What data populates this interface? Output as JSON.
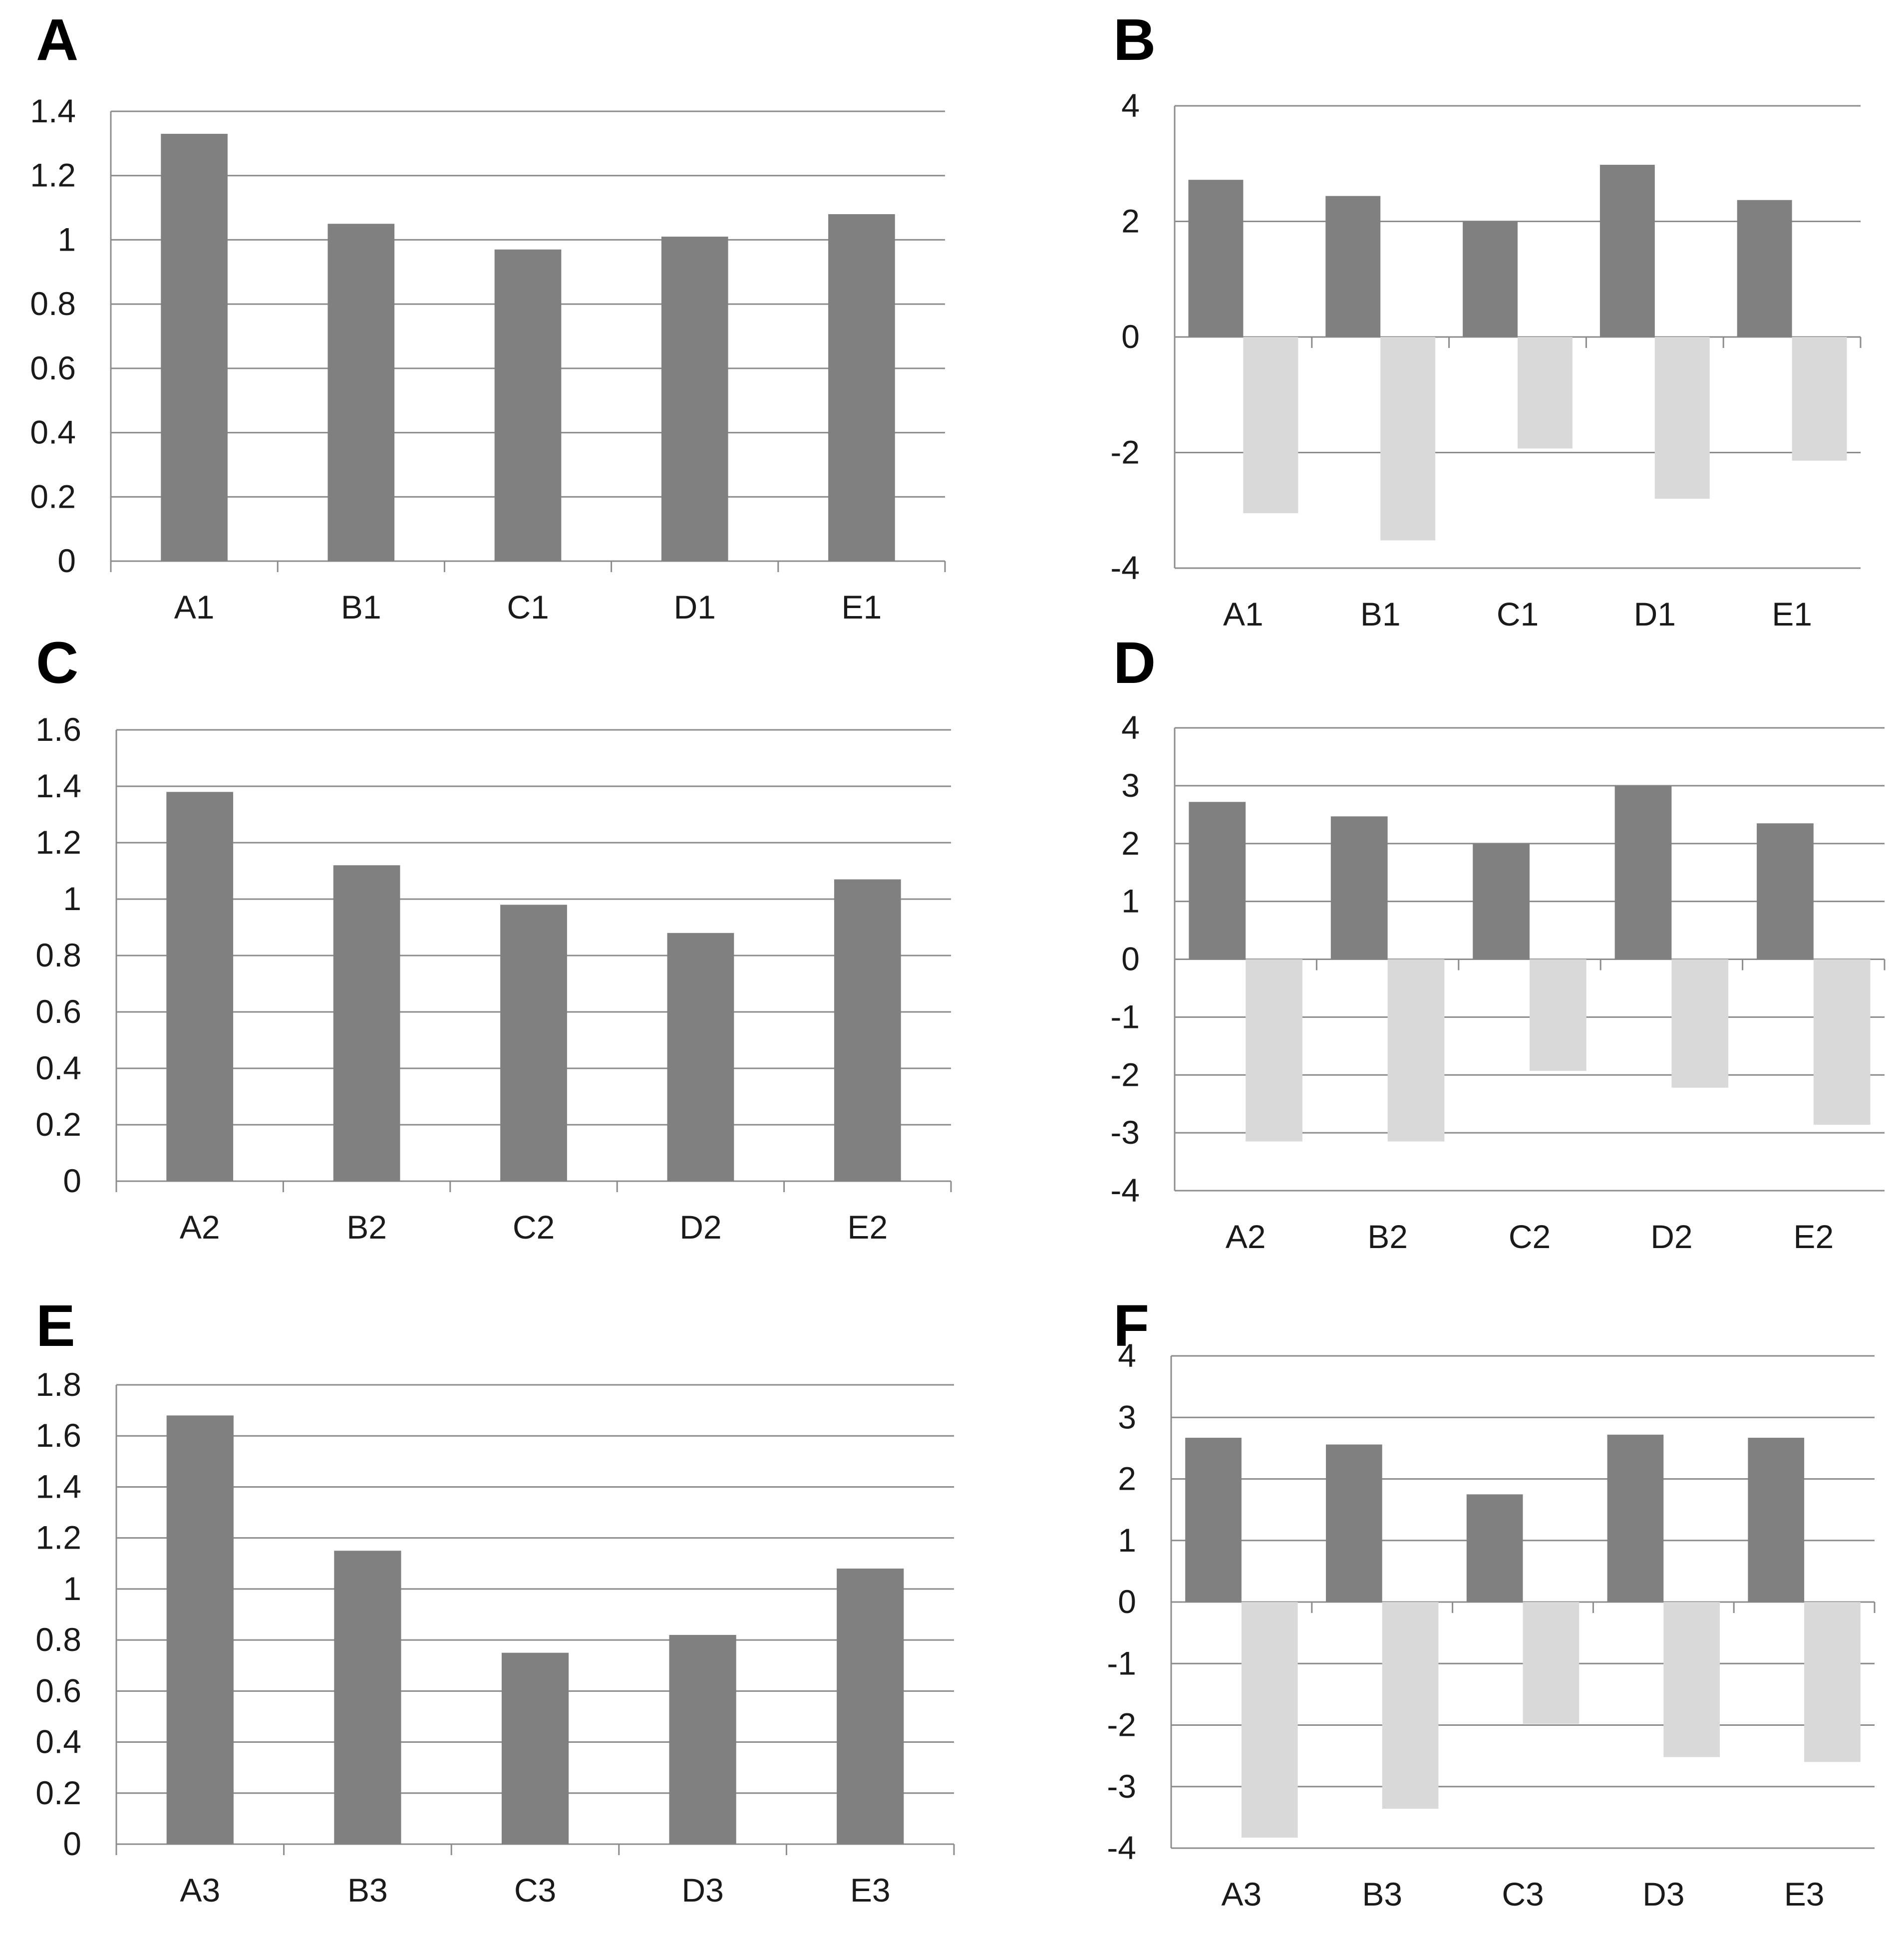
{
  "colors": {
    "positive": "#808080",
    "negative": "#d9d9d9",
    "grid": "#8c8c8c",
    "axis": "#8c8c8c",
    "text": "#1a1a1a"
  },
  "chart_data": [
    {
      "panel": "A",
      "type": "bar",
      "categories": [
        "A1",
        "B1",
        "C1",
        "D1",
        "E1"
      ],
      "series": [
        {
          "name": "",
          "values": [
            1.33,
            1.05,
            0.97,
            1.01,
            1.08
          ]
        }
      ],
      "ylim": [
        0,
        1.4
      ],
      "yticks": [
        "0",
        "0.2",
        "0.4",
        "0.6",
        "0.8",
        "1",
        "1.2",
        "1.4"
      ],
      "ytick_values": [
        0,
        0.2,
        0.4,
        0.6,
        0.8,
        1,
        1.2,
        1.4
      ],
      "grid": true,
      "title": "",
      "xlabel": "",
      "ylabel": ""
    },
    {
      "panel": "B",
      "type": "bar",
      "categories": [
        "A1",
        "B1",
        "C1",
        "D1",
        "E1"
      ],
      "series": [
        {
          "name": "",
          "values": [
            2.72,
            2.44,
            2.0,
            2.98,
            2.37
          ]
        },
        {
          "name": "",
          "values": [
            -3.05,
            -3.52,
            -1.93,
            -2.8,
            -2.14
          ]
        }
      ],
      "ylim": [
        -4,
        4
      ],
      "yticks": [
        "-4",
        "-2",
        "0",
        "2",
        "4"
      ],
      "ytick_values": [
        -4,
        -2,
        0,
        2,
        4
      ],
      "grid": true,
      "title": "",
      "xlabel": "",
      "ylabel": ""
    },
    {
      "panel": "C",
      "type": "bar",
      "categories": [
        "A2",
        "B2",
        "C2",
        "D2",
        "E2"
      ],
      "series": [
        {
          "name": "",
          "values": [
            1.38,
            1.12,
            0.98,
            0.88,
            1.07
          ]
        }
      ],
      "ylim": [
        0,
        1.6
      ],
      "yticks": [
        "0",
        "0.2",
        "0.4",
        "0.6",
        "0.8",
        "1",
        "1.2",
        "1.4",
        "1.6"
      ],
      "ytick_values": [
        0,
        0.2,
        0.4,
        0.6,
        0.8,
        1,
        1.2,
        1.4,
        1.6
      ],
      "grid": true,
      "title": "",
      "xlabel": "",
      "ylabel": ""
    },
    {
      "panel": "D",
      "type": "bar",
      "categories": [
        "A2",
        "B2",
        "C2",
        "D2",
        "E2"
      ],
      "series": [
        {
          "name": "",
          "values": [
            2.72,
            2.47,
            2.0,
            3.0,
            2.35
          ]
        },
        {
          "name": "",
          "values": [
            -3.15,
            -3.15,
            -1.93,
            -2.22,
            -2.86
          ]
        }
      ],
      "ylim": [
        -4,
        4
      ],
      "yticks": [
        "-4",
        "-3",
        "-2",
        "-1",
        "0",
        "1",
        "2",
        "3",
        "4"
      ],
      "ytick_values": [
        -4,
        -3,
        -2,
        -1,
        0,
        1,
        2,
        3,
        4
      ],
      "grid": true,
      "title": "",
      "xlabel": "",
      "ylabel": ""
    },
    {
      "panel": "E",
      "type": "bar",
      "categories": [
        "A3",
        "B3",
        "C3",
        "D3",
        "E3"
      ],
      "series": [
        {
          "name": "",
          "values": [
            1.68,
            1.15,
            0.75,
            0.82,
            1.08
          ]
        }
      ],
      "ylim": [
        0,
        1.8
      ],
      "yticks": [
        "0",
        "0.2",
        "0.4",
        "0.6",
        "0.8",
        "1",
        "1.2",
        "1.4",
        "1.6",
        "1.8"
      ],
      "ytick_values": [
        0,
        0.2,
        0.4,
        0.6,
        0.8,
        1,
        1.2,
        1.4,
        1.6,
        1.8
      ],
      "grid": true,
      "title": "",
      "xlabel": "",
      "ylabel": ""
    },
    {
      "panel": "F",
      "type": "bar",
      "categories": [
        "A3",
        "B3",
        "C3",
        "D3",
        "E3"
      ],
      "series": [
        {
          "name": "",
          "values": [
            2.67,
            2.56,
            1.75,
            2.72,
            2.67
          ]
        },
        {
          "name": "",
          "values": [
            -3.83,
            -3.36,
            -1.98,
            -2.52,
            -2.6
          ]
        }
      ],
      "ylim": [
        -4,
        4
      ],
      "yticks": [
        "-4",
        "-3",
        "-2",
        "-1",
        "0",
        "1",
        "2",
        "3",
        "4"
      ],
      "ytick_values": [
        -4,
        -3,
        -2,
        -1,
        0,
        1,
        2,
        3,
        4
      ],
      "grid": true,
      "title": "",
      "xlabel": "",
      "ylabel": ""
    }
  ]
}
